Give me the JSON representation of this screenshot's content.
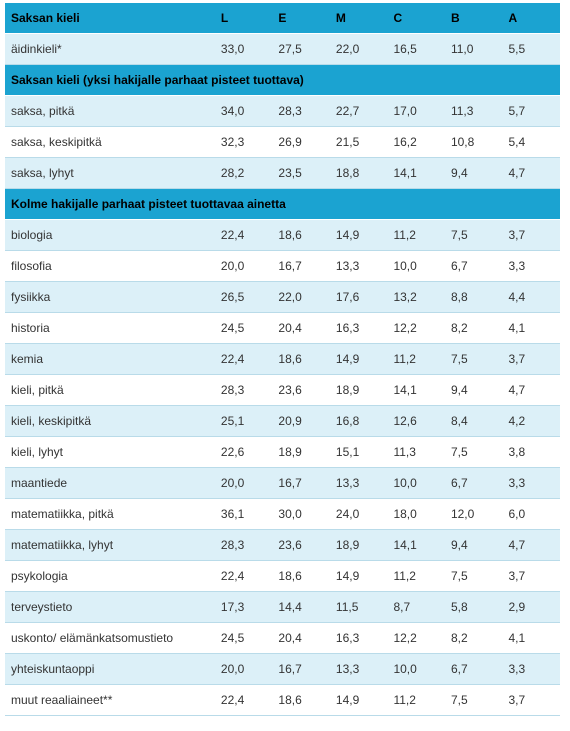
{
  "header": {
    "label": "Saksan kieli",
    "columns": [
      "L",
      "E",
      "M",
      "C",
      "B",
      "A"
    ]
  },
  "sections": [
    {
      "title": "",
      "rows": [
        {
          "label": "äidinkieli*",
          "values": [
            "33,0",
            "27,5",
            "22,0",
            "16,5",
            "11,0",
            "5,5"
          ]
        }
      ]
    },
    {
      "title": "Saksan kieli (yksi hakijalle parhaat pisteet tuottava)",
      "rows": [
        {
          "label": "saksa, pitkä",
          "values": [
            "34,0",
            "28,3",
            "22,7",
            "17,0",
            "11,3",
            "5,7"
          ]
        },
        {
          "label": "saksa, keskipitkä",
          "values": [
            "32,3",
            "26,9",
            "21,5",
            "16,2",
            "10,8",
            "5,4"
          ]
        },
        {
          "label": "saksa, lyhyt",
          "values": [
            "28,2",
            "23,5",
            "18,8",
            "14,1",
            "9,4",
            "4,7"
          ]
        }
      ]
    },
    {
      "title": "Kolme hakijalle parhaat pisteet tuottavaa ainetta",
      "rows": [
        {
          "label": "biologia",
          "values": [
            "22,4",
            "18,6",
            "14,9",
            "11,2",
            "7,5",
            "3,7"
          ]
        },
        {
          "label": "filosofia",
          "values": [
            "20,0",
            "16,7",
            "13,3",
            "10,0",
            "6,7",
            "3,3"
          ]
        },
        {
          "label": "fysiikka",
          "values": [
            "26,5",
            "22,0",
            "17,6",
            "13,2",
            "8,8",
            "4,4"
          ]
        },
        {
          "label": "historia",
          "values": [
            "24,5",
            "20,4",
            "16,3",
            "12,2",
            "8,2",
            "4,1"
          ]
        },
        {
          "label": "kemia",
          "values": [
            "22,4",
            "18,6",
            "14,9",
            "11,2",
            "7,5",
            "3,7"
          ]
        },
        {
          "label": "kieli, pitkä",
          "values": [
            "28,3",
            "23,6",
            "18,9",
            "14,1",
            "9,4",
            "4,7"
          ]
        },
        {
          "label": "kieli, keskipitkä",
          "values": [
            "25,1",
            "20,9",
            "16,8",
            "12,6",
            "8,4",
            "4,2"
          ]
        },
        {
          "label": "kieli, lyhyt",
          "values": [
            "22,6",
            "18,9",
            "15,1",
            "11,3",
            "7,5",
            "3,8"
          ]
        },
        {
          "label": "maantiede",
          "values": [
            "20,0",
            "16,7",
            "13,3",
            "10,0",
            "6,7",
            "3,3"
          ]
        },
        {
          "label": "matematiikka, pitkä",
          "values": [
            "36,1",
            "30,0",
            "24,0",
            "18,0",
            "12,0",
            "6,0"
          ]
        },
        {
          "label": "matematiikka, lyhyt",
          "values": [
            "28,3",
            "23,6",
            "18,9",
            "14,1",
            "9,4",
            "4,7"
          ]
        },
        {
          "label": "psykologia",
          "values": [
            "22,4",
            "18,6",
            "14,9",
            "11,2",
            "7,5",
            "3,7"
          ]
        },
        {
          "label": "terveystieto",
          "values": [
            "17,3",
            "14,4",
            "11,5",
            "8,7",
            "5,8",
            "2,9"
          ]
        },
        {
          "label": "uskonto/ elämänkatsomustieto",
          "values": [
            "24,5",
            "20,4",
            "16,3",
            "12,2",
            "8,2",
            "4,1"
          ]
        },
        {
          "label": "yhteiskuntaoppi",
          "values": [
            "20,0",
            "16,7",
            "13,3",
            "10,0",
            "6,7",
            "3,3"
          ]
        },
        {
          "label": "muut reaaliaineet**",
          "values": [
            "22,4",
            "18,6",
            "14,9",
            "11,2",
            "7,5",
            "3,7"
          ]
        }
      ]
    }
  ],
  "colors": {
    "header_bg": "#1ba3d1",
    "row_alt_bg": "#dcf0f8",
    "row_bg": "#ffffff",
    "divider": "#b9dbe9"
  }
}
